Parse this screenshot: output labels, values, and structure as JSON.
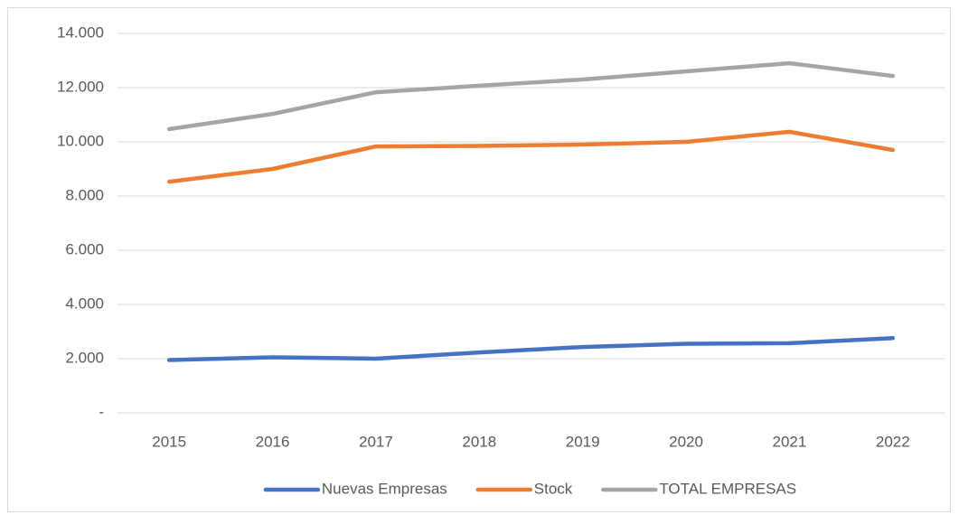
{
  "chart_data": {
    "type": "line",
    "categories": [
      "2015",
      "2016",
      "2017",
      "2018",
      "2019",
      "2020",
      "2021",
      "2022"
    ],
    "series": [
      {
        "name": "Nuevas Empresas",
        "color": "#4472c4",
        "values": [
          1950,
          2050,
          2000,
          2230,
          2430,
          2550,
          2570,
          2760
        ]
      },
      {
        "name": "Stock",
        "color": "#ed7d31",
        "values": [
          8530,
          9000,
          9830,
          9850,
          9900,
          10000,
          10370,
          9700
        ]
      },
      {
        "name": "TOTAL EMPRESAS",
        "color": "#a5a5a5",
        "values": [
          10470,
          11030,
          11830,
          12070,
          12300,
          12600,
          12900,
          12430
        ]
      }
    ],
    "ylim": [
      0,
      14000
    ],
    "yticks": [
      {
        "value": 0,
        "label": "-"
      },
      {
        "value": 2000,
        "label": "2.000"
      },
      {
        "value": 4000,
        "label": "4.000"
      },
      {
        "value": 6000,
        "label": "6.000"
      },
      {
        "value": 8000,
        "label": "8.000"
      },
      {
        "value": 10000,
        "label": "10.000"
      },
      {
        "value": 12000,
        "label": "12.000"
      },
      {
        "value": 14000,
        "label": "14.000"
      }
    ],
    "grid": true,
    "legend": "bottom"
  }
}
